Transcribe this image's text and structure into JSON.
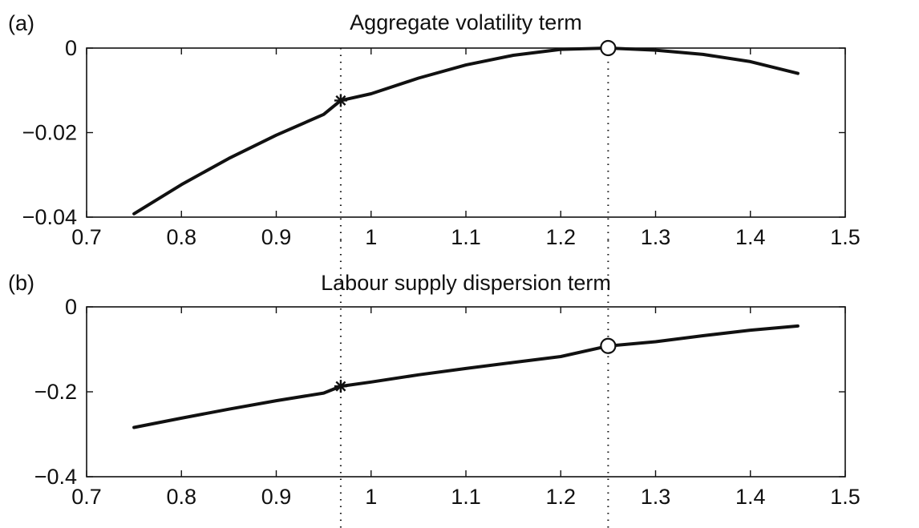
{
  "chart_data": [
    {
      "type": "line",
      "panel_label": "(a)",
      "title": "Aggregate volatility term",
      "xlabel": "",
      "ylabel": "",
      "xlim": [
        0.7,
        1.5
      ],
      "ylim": [
        -0.04,
        0
      ],
      "x_ticks": [
        0.7,
        0.8,
        0.9,
        1,
        1.1,
        1.2,
        1.3,
        1.4,
        1.5
      ],
      "x_tick_labels": [
        "0.7",
        "0.8",
        "0.9",
        "1",
        "1.1",
        "1.2",
        "1.3",
        "1.4",
        "1.5"
      ],
      "y_ticks": [
        0,
        -0.02,
        -0.04
      ],
      "y_tick_labels": [
        "0",
        "−0.02",
        "−0.04"
      ],
      "grid": false,
      "series": [
        {
          "x": [
            0.75,
            0.8,
            0.85,
            0.9,
            0.95,
            0.968,
            1.0,
            1.05,
            1.1,
            1.15,
            1.2,
            1.25,
            1.3,
            1.35,
            1.4,
            1.45
          ],
          "y": [
            -0.0392,
            -0.0323,
            -0.0261,
            -0.0206,
            -0.0157,
            -0.0124,
            -0.0108,
            -0.0071,
            -0.004,
            -0.0017,
            -0.0003,
            0.0,
            -0.0005,
            -0.0015,
            -0.0032,
            -0.006
          ]
        }
      ],
      "markers": [
        {
          "shape": "star",
          "x": 0.968,
          "y": -0.0124
        },
        {
          "shape": "circle",
          "x": 1.25,
          "y": 0.0
        }
      ],
      "vlines": [
        0.968,
        1.25
      ]
    },
    {
      "type": "line",
      "panel_label": "(b)",
      "title": "Labour supply dispersion term",
      "xlabel": "",
      "ylabel": "",
      "xlim": [
        0.7,
        1.5
      ],
      "ylim": [
        -0.4,
        0
      ],
      "x_ticks": [
        0.7,
        0.8,
        0.9,
        1,
        1.1,
        1.2,
        1.3,
        1.4,
        1.5
      ],
      "x_tick_labels": [
        "0.7",
        "0.8",
        "0.9",
        "1",
        "1.1",
        "1.2",
        "1.3",
        "1.4",
        "1.5"
      ],
      "y_ticks": [
        0,
        -0.2,
        -0.4
      ],
      "y_tick_labels": [
        "0",
        "−0.2",
        "−0.4"
      ],
      "grid": false,
      "series": [
        {
          "x": [
            0.75,
            0.8,
            0.85,
            0.9,
            0.95,
            0.968,
            1.0,
            1.05,
            1.1,
            1.15,
            1.2,
            1.25,
            1.3,
            1.35,
            1.4,
            1.45
          ],
          "y": [
            -0.284,
            -0.262,
            -0.241,
            -0.221,
            -0.203,
            -0.187,
            -0.177,
            -0.16,
            -0.145,
            -0.131,
            -0.117,
            -0.092,
            -0.082,
            -0.068,
            -0.055,
            -0.045
          ]
        }
      ],
      "markers": [
        {
          "shape": "star",
          "x": 0.968,
          "y": -0.187
        },
        {
          "shape": "circle",
          "x": 1.25,
          "y": -0.092
        }
      ],
      "vlines": [
        0.968,
        1.25
      ]
    }
  ]
}
